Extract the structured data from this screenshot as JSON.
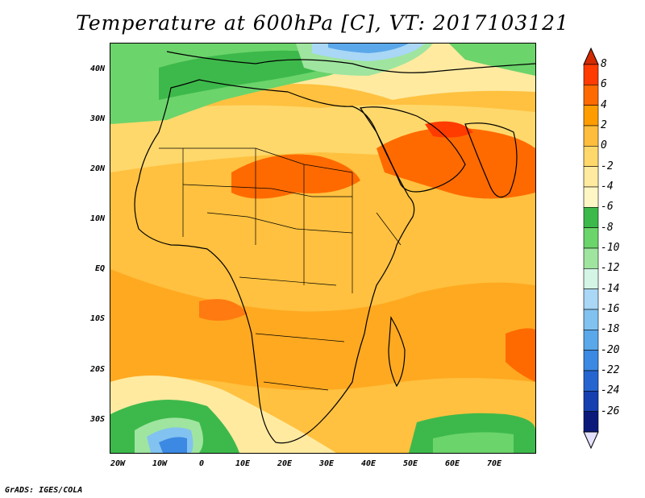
{
  "title": "Temperature at 600hPa [C], VT: 2017103121",
  "map": {
    "lat_labels": [
      "40N",
      "30N",
      "20N",
      "10N",
      "EQ",
      "10S",
      "20S",
      "30S"
    ],
    "lon_labels": [
      "20W",
      "10W",
      "0",
      "10E",
      "20E",
      "30E",
      "40E",
      "50E",
      "60E",
      "70E"
    ],
    "lon_range": [
      -22,
      80
    ],
    "lat_range": [
      -37,
      45
    ]
  },
  "colorbar": {
    "labels": [
      "8",
      "6",
      "4",
      "2",
      "0",
      "-2",
      "-4",
      "-6",
      "-8",
      "-10",
      "-12",
      "-14",
      "-16",
      "-18",
      "-20",
      "-22",
      "-24",
      "-26"
    ],
    "colors": [
      "#ff3b00",
      "#ff6a00",
      "#ff9d00",
      "#ffbd3d",
      "#ffd86b",
      "#ffeaa0",
      "#fff6c5",
      "#3db94b",
      "#6bd46b",
      "#9fe59f",
      "#d4f5e6",
      "#a9d7f5",
      "#82c2f0",
      "#5aa8ea",
      "#3b89e3",
      "#2665cf",
      "#163fb0",
      "#0b1a7a"
    ],
    "top_color": "#d42a00",
    "bottom_color": "#e4e1ff"
  },
  "credit": "GrADS: IGES/COLA"
}
